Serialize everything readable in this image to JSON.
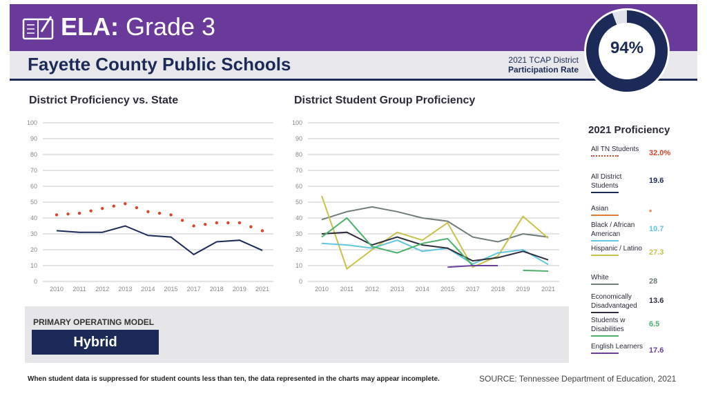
{
  "header": {
    "subject_bold": "ELA:",
    "subject_rest": " Grade 3",
    "district": "Fayette County Public Schools",
    "participation_line1": "2021 TCAP District",
    "participation_line2": "Participation Rate",
    "participation_rate": "94%",
    "participation_fraction": 0.94,
    "colors": {
      "purple": "#6a3a9a",
      "navy": "#1c2a57",
      "ring_bg": "#e2e2ea"
    }
  },
  "icons": {
    "book": "book-pencil-icon"
  },
  "chart_data": [
    {
      "type": "line",
      "title": "District Proficiency vs. State",
      "x": [
        "2010",
        "2011",
        "2012",
        "2013",
        "2014",
        "2015",
        "2017",
        "2018",
        "2019",
        "2021"
      ],
      "ylim": [
        0,
        100
      ],
      "yticks": [
        0,
        10,
        20,
        30,
        40,
        50,
        60,
        70,
        80,
        90,
        100
      ],
      "series": [
        {
          "key": "state",
          "color": "#d9452b",
          "dotted": true,
          "values": [
            42,
            43,
            46,
            49,
            44,
            42,
            35,
            37,
            37,
            32
          ]
        },
        {
          "key": "district",
          "color": "#1c2a57",
          "dotted": false,
          "values": [
            32,
            31,
            31,
            35,
            29,
            28,
            17,
            25,
            26,
            19.6
          ]
        }
      ]
    },
    {
      "type": "line",
      "title": "District Student Group Proficiency",
      "x": [
        "2010",
        "2011",
        "2012",
        "2013",
        "2014",
        "2015",
        "2017",
        "2018",
        "2019",
        "2021"
      ],
      "ylim": [
        0,
        100
      ],
      "yticks": [
        0,
        10,
        20,
        30,
        40,
        50,
        60,
        70,
        80,
        90,
        100
      ],
      "series": [
        {
          "key": "white",
          "color": "#6e7d78",
          "values": [
            39,
            44,
            47,
            44,
            40,
            38,
            28,
            25,
            30,
            28
          ]
        },
        {
          "key": "hispanic",
          "color": "#c8c24a",
          "values": [
            54,
            8,
            20,
            31,
            26,
            37,
            9,
            16,
            41,
            27.3
          ]
        },
        {
          "key": "black",
          "color": "#5fc6dc",
          "values": [
            24,
            23,
            21,
            26,
            19,
            21,
            11,
            18,
            20,
            10.7
          ]
        },
        {
          "key": "econ",
          "color": "#2e2e3e",
          "values": [
            30,
            31,
            23,
            28,
            23,
            21,
            13,
            15,
            19,
            13.6
          ]
        },
        {
          "key": "swd",
          "color": "#4ab06a",
          "values": [
            28,
            40,
            22,
            18,
            24,
            27,
            10,
            null,
            7,
            6.5
          ]
        },
        {
          "key": "el",
          "color": "#6b3fa0",
          "values": [
            null,
            null,
            null,
            null,
            null,
            9,
            10,
            10,
            null,
            null
          ]
        }
      ]
    }
  ],
  "legend": {
    "title": "2021 Proficiency",
    "items": [
      {
        "label": "All TN Students",
        "value": "32.0%",
        "color": "#d9452b",
        "dotted": true
      },
      {
        "label": "All District Students",
        "value": "19.6",
        "color": "#1c2a57"
      },
      {
        "label": "Asian",
        "value": "*",
        "color": "#e27a3a"
      },
      {
        "label": "Black / African American",
        "value": "10.7",
        "color": "#5fc6dc"
      },
      {
        "label": "Hispanic / Latino",
        "value": "27.3",
        "color": "#c8c24a"
      },
      {
        "label": "White",
        "value": "28",
        "color": "#6e7d78"
      },
      {
        "label": "Economically Disadvantaged",
        "value": "13.6",
        "color": "#2e2e3e"
      },
      {
        "label": "Students w Disabilities",
        "value": "6.5",
        "color": "#4ab06a"
      },
      {
        "label": "English Learners",
        "value": "17.6",
        "color": "#6b3fa0"
      }
    ]
  },
  "operating_model": {
    "label": "PRIMARY OPERATING MODEL",
    "value": "Hybrid"
  },
  "footer": {
    "note": "When student data is suppressed for student counts less than ten, the data represented in the charts may appear incomplete.",
    "source": "SOURCE: Tennessee Department of Education, 2021"
  }
}
